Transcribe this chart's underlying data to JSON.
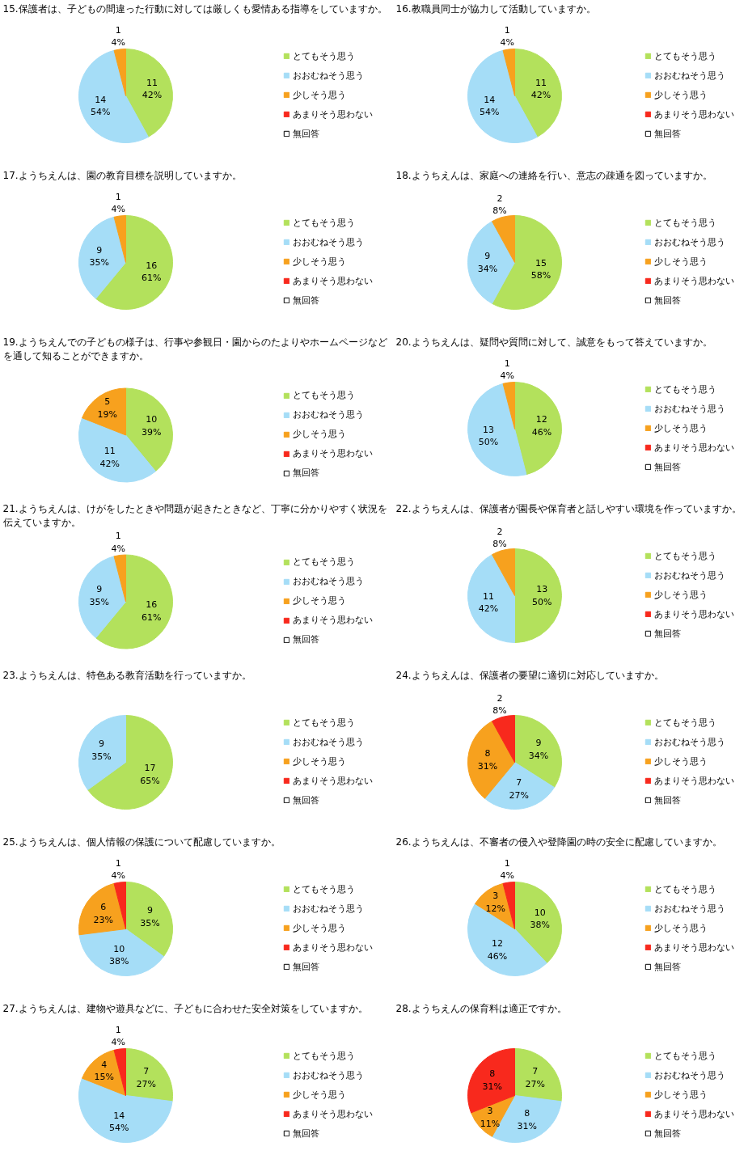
{
  "chart_data": [
    {
      "type": "pie",
      "title": "15.保護者は、子どもの間違った行動に対しては厳しくも愛情ある指導をしていますか。",
      "categories": [
        "とてもそう思う",
        "おおむねそう思う",
        "少しそう思う",
        "あまりそう思わない",
        "無回答"
      ],
      "values": [
        42,
        54,
        4,
        0,
        0
      ],
      "value_labels": [
        "11\n42%",
        "14\n54%",
        "1\n4%",
        null,
        null
      ],
      "colors": [
        "#b3e15c",
        "#a5ddf7",
        "#f7a11e",
        "#f8291d",
        "#ffffff"
      ],
      "legend": "right"
    },
    {
      "type": "pie",
      "title": "16.教職員同士が協力して活動していますか。",
      "categories": [
        "とてもそう思う",
        "おおむねそう思う",
        "少しそう思う",
        "あまりそう思わない",
        "無回答"
      ],
      "values": [
        42,
        54,
        4,
        0,
        0
      ],
      "value_labels": [
        "11\n42%",
        "14\n54%",
        "1\n4%",
        null,
        null
      ],
      "colors": [
        "#b3e15c",
        "#a5ddf7",
        "#f7a11e",
        "#f8291d",
        "#ffffff"
      ],
      "legend": "right"
    },
    {
      "type": "pie",
      "title": "17.ようちえんは、園の教育目標を説明していますか。",
      "categories": [
        "とてもそう思う",
        "おおむねそう思う",
        "少しそう思う",
        "あまりそう思わない",
        "無回答"
      ],
      "values": [
        61,
        35,
        4,
        0,
        0
      ],
      "value_labels": [
        "16\n61%",
        "9\n35%",
        "1\n4%",
        null,
        null
      ],
      "colors": [
        "#b3e15c",
        "#a5ddf7",
        "#f7a11e",
        "#f8291d",
        "#ffffff"
      ],
      "legend": "right"
    },
    {
      "type": "pie",
      "title": "18.ようちえんは、家庭への連絡を行い、意志の疎通を図っていますか。",
      "categories": [
        "とてもそう思う",
        "おおむねそう思う",
        "少しそう思う",
        "あまりそう思わない",
        "無回答"
      ],
      "values": [
        58,
        34,
        8,
        0,
        0
      ],
      "value_labels": [
        "15\n58%",
        "9\n34%",
        "2\n8%",
        null,
        null
      ],
      "colors": [
        "#b3e15c",
        "#a5ddf7",
        "#f7a11e",
        "#f8291d",
        "#ffffff"
      ],
      "legend": "right"
    },
    {
      "type": "pie",
      "title": "19.ようちえんでの子どもの様子は、行事や参観日・園からのたよりやホームページなどを通して知ることができますか。",
      "categories": [
        "とてもそう思う",
        "おおむねそう思う",
        "少しそう思う",
        "あまりそう思わない",
        "無回答"
      ],
      "values": [
        39,
        42,
        19,
        0,
        0
      ],
      "value_labels": [
        "10\n39%",
        "11\n42%",
        "5\n19%",
        null,
        null
      ],
      "colors": [
        "#b3e15c",
        "#a5ddf7",
        "#f7a11e",
        "#f8291d",
        "#ffffff"
      ],
      "legend": "right"
    },
    {
      "type": "pie",
      "title": "20.ようちえんは、疑問や質問に対して、誠意をもって答えていますか。",
      "categories": [
        "とてもそう思う",
        "おおむねそう思う",
        "少しそう思う",
        "あまりそう思わない",
        "無回答"
      ],
      "values": [
        46,
        50,
        4,
        0,
        0
      ],
      "value_labels": [
        "12\n46%",
        "13\n50%",
        "1\n4%",
        null,
        null
      ],
      "colors": [
        "#b3e15c",
        "#a5ddf7",
        "#f7a11e",
        "#f8291d",
        "#ffffff"
      ],
      "legend": "right"
    },
    {
      "type": "pie",
      "title": "21.ようちえんは、けがをしたときや問題が起きたときなど、丁寧に分かりやすく状況を伝えていますか。",
      "categories": [
        "とてもそう思う",
        "おおむねそう思う",
        "少しそう思う",
        "あまりそう思わない",
        "無回答"
      ],
      "values": [
        61,
        35,
        4,
        0,
        0
      ],
      "value_labels": [
        "16\n61%",
        "9\n35%",
        "1\n4%",
        null,
        null
      ],
      "colors": [
        "#b3e15c",
        "#a5ddf7",
        "#f7a11e",
        "#f8291d",
        "#ffffff"
      ],
      "legend": "right"
    },
    {
      "type": "pie",
      "title": "22.ようちえんは、保護者が園長や保育者と話しやすい環境を作っていますか。",
      "categories": [
        "とてもそう思う",
        "おおむねそう思う",
        "少しそう思う",
        "あまりそう思わない",
        "無回答"
      ],
      "values": [
        50,
        42,
        8,
        0,
        0
      ],
      "value_labels": [
        "13\n50%",
        "11\n42%",
        "2\n8%",
        null,
        null
      ],
      "colors": [
        "#b3e15c",
        "#a5ddf7",
        "#f7a11e",
        "#f8291d",
        "#ffffff"
      ],
      "legend": "right"
    },
    {
      "type": "pie",
      "title": "23.ようちえんは、特色ある教育活動を行っていますか。",
      "categories": [
        "とてもそう思う",
        "おおむねそう思う",
        "少しそう思う",
        "あまりそう思わない",
        "無回答"
      ],
      "values": [
        65,
        35,
        0,
        0,
        0
      ],
      "value_labels": [
        "17\n65%",
        "9\n35%",
        null,
        null,
        null
      ],
      "colors": [
        "#b3e15c",
        "#a5ddf7",
        "#f7a11e",
        "#f8291d",
        "#ffffff"
      ],
      "legend": "right"
    },
    {
      "type": "pie",
      "title": "24.ようちえんは、保護者の要望に適切に対応していますか。",
      "categories": [
        "とてもそう思う",
        "おおむねそう思う",
        "少しそう思う",
        "あまりそう思わない",
        "無回答"
      ],
      "values": [
        34,
        27,
        31,
        8,
        0
      ],
      "value_labels": [
        "9\n34%",
        "7\n27%",
        "8\n31%",
        "2\n8%",
        null
      ],
      "colors": [
        "#b3e15c",
        "#a5ddf7",
        "#f7a11e",
        "#f8291d",
        "#ffffff"
      ],
      "legend": "right"
    },
    {
      "type": "pie",
      "title": "25.ようちえんは、個人情報の保護について配慮していますか。",
      "categories": [
        "とてもそう思う",
        "おおむねそう思う",
        "少しそう思う",
        "あまりそう思わない",
        "無回答"
      ],
      "values": [
        35,
        38,
        23,
        4,
        0
      ],
      "value_labels": [
        "9\n35%",
        "10\n38%",
        "6\n23%",
        "1\n4%",
        null
      ],
      "colors": [
        "#b3e15c",
        "#a5ddf7",
        "#f7a11e",
        "#f8291d",
        "#ffffff"
      ],
      "legend": "right"
    },
    {
      "type": "pie",
      "title": "26.ようちえんは、不審者の侵入や登降園の時の安全に配慮していますか。",
      "categories": [
        "とてもそう思う",
        "おおむねそう思う",
        "少しそう思う",
        "あまりそう思わない",
        "無回答"
      ],
      "values": [
        38,
        46,
        12,
        4,
        0
      ],
      "value_labels": [
        "10\n38%",
        "12\n46%",
        "3\n12%",
        "1\n4%",
        null
      ],
      "colors": [
        "#b3e15c",
        "#a5ddf7",
        "#f7a11e",
        "#f8291d",
        "#ffffff"
      ],
      "legend": "right"
    },
    {
      "type": "pie",
      "title": "27.ようちえんは、建物や遊具などに、子どもに合わせた安全対策をしていますか。",
      "categories": [
        "とてもそう思う",
        "おおむねそう思う",
        "少しそう思う",
        "あまりそう思わない",
        "無回答"
      ],
      "values": [
        27,
        54,
        15,
        4,
        0
      ],
      "value_labels": [
        "7\n27%",
        "14\n54%",
        "4\n15%",
        "1\n4%",
        null
      ],
      "colors": [
        "#b3e15c",
        "#a5ddf7",
        "#f7a11e",
        "#f8291d",
        "#ffffff"
      ],
      "legend": "right"
    },
    {
      "type": "pie",
      "title": "28.ようちえんの保育料は適正ですか。",
      "categories": [
        "とてもそう思う",
        "おおむねそう思う",
        "少しそう思う",
        "あまりそう思わない",
        "無回答"
      ],
      "values": [
        27,
        31,
        11,
        31,
        0
      ],
      "value_labels": [
        "7\n27%",
        "8\n31%",
        "3\n11%",
        "8\n31%",
        null
      ],
      "colors": [
        "#b3e15c",
        "#a5ddf7",
        "#f7a11e",
        "#f8291d",
        "#ffffff"
      ],
      "legend": "right"
    }
  ]
}
